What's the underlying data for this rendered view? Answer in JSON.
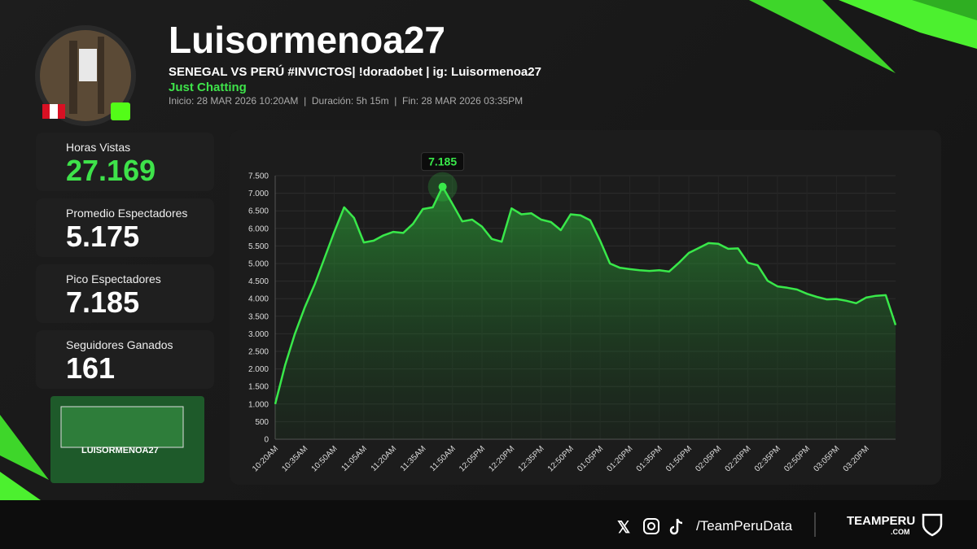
{
  "header": {
    "name": "Luisormenoa27",
    "title": "SENEGAL VS PERÚ #INVICTOS| !doradobet | ig: Luisormenoa27",
    "category": "Just Chatting",
    "meta": [
      "Inicio: 28 MAR 2026 10:20AM",
      "Duración: 5h 15m",
      "Fin: 28 MAR 2026 03:35PM"
    ]
  },
  "stats": [
    {
      "label": "Horas Vistas",
      "value": "27.169"
    },
    {
      "label": "Promedio Espectadores",
      "value": "5.175"
    },
    {
      "label": "Pico Espectadores",
      "value": "7.185"
    },
    {
      "label": "Seguidores Ganados",
      "value": "161"
    }
  ],
  "thumbnail": {
    "label": "LUISORMENOA27"
  },
  "chart_data": {
    "type": "area",
    "color": "#39e84a",
    "grid": true,
    "categories": [
      "10:20AM",
      null,
      null,
      "10:35AM",
      null,
      null,
      "10:50AM",
      null,
      null,
      "11:05AM",
      null,
      null,
      "11:20AM",
      null,
      null,
      "11:35AM",
      null,
      null,
      "11:50AM",
      null,
      null,
      "12:05PM",
      null,
      null,
      "12:20PM",
      null,
      null,
      "12:35PM",
      null,
      null,
      "12:50PM",
      null,
      null,
      "01:05PM",
      null,
      null,
      "01:20PM",
      null,
      null,
      "01:35PM",
      null,
      null,
      "01:50PM",
      null,
      null,
      "02:05PM",
      null,
      null,
      "02:20PM",
      null,
      null,
      "02:35PM",
      null,
      null,
      "02:50PM",
      null,
      null,
      "03:05PM",
      null,
      null,
      "03:20PM",
      null,
      null,
      null
    ],
    "values": [
      1000,
      2100,
      3000,
      3750,
      4400,
      5150,
      5900,
      6600,
      6300,
      5600,
      5650,
      5800,
      5900,
      5870,
      6130,
      6550,
      6600,
      7185,
      6700,
      6200,
      6250,
      6050,
      5700,
      5620,
      6570,
      6400,
      6430,
      6250,
      6180,
      5950,
      6400,
      6370,
      6230,
      5650,
      5000,
      4880,
      4840,
      4810,
      4790,
      4810,
      4770,
      5020,
      5300,
      5440,
      5580,
      5560,
      5420,
      5430,
      5020,
      4950,
      4510,
      4350,
      4310,
      4260,
      4140,
      4050,
      3980,
      3990,
      3940,
      3870,
      4030,
      4080,
      4100,
      3250
    ],
    "value_labels": [
      null,
      null,
      null,
      null,
      null,
      null,
      null,
      null,
      null,
      null,
      null,
      null,
      null,
      null,
      null,
      null,
      null,
      "7.185",
      null,
      null,
      null,
      null,
      null,
      null,
      null,
      null,
      null,
      null,
      null,
      null,
      null,
      null,
      null,
      null,
      null,
      null,
      null,
      null,
      null,
      null,
      null,
      null,
      null,
      null,
      null,
      null,
      null,
      null,
      null,
      null,
      null,
      null,
      null,
      null,
      null,
      null,
      null,
      null,
      null,
      null,
      null,
      null,
      null,
      null
    ],
    "ylim": [
      0,
      7500
    ],
    "yticks": [
      0,
      {
        "value": 500,
        "label": "500"
      },
      {
        "value": 1000,
        "label": "1.000"
      },
      {
        "value": 1500,
        "label": "1.500"
      },
      {
        "value": 2000,
        "label": "2.000"
      },
      {
        "value": 2500,
        "label": "2.500"
      },
      {
        "value": 3000,
        "label": "3.000"
      },
      {
        "value": 3500,
        "label": "3.500"
      },
      {
        "value": 4000,
        "label": "4.000"
      },
      {
        "value": 4500,
        "label": "4.500"
      },
      {
        "value": 5000,
        "label": "5.000"
      },
      {
        "value": 5500,
        "label": "5.500"
      },
      {
        "value": 6000,
        "label": "6.000"
      },
      {
        "value": 6500,
        "label": "6.500"
      },
      {
        "value": 7000,
        "label": "7.000"
      },
      {
        "value": 7500,
        "label": "7.500"
      }
    ]
  },
  "footer": {
    "handle": "/TeamPeruData",
    "brand": "TEAMPERU",
    "brand_suffix": ".COM"
  }
}
